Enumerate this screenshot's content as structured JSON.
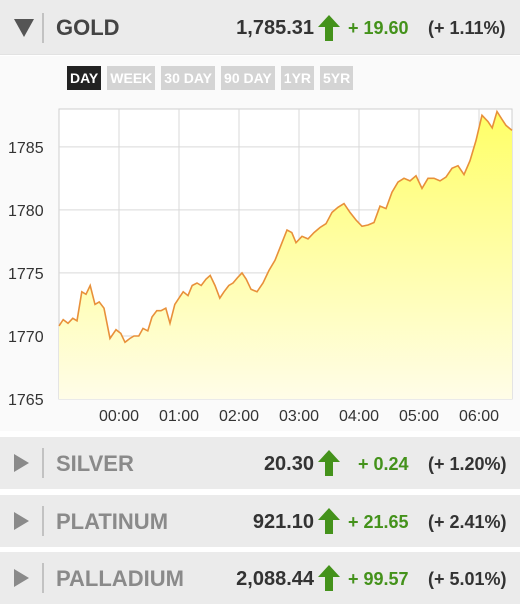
{
  "gold": {
    "name": "GOLD",
    "price": "1,785.31",
    "change": "+ 19.60",
    "percent": "(+ 1.11%)",
    "icons": {
      "collapse": "triangle-down-icon",
      "trend": "arrow-up-icon"
    }
  },
  "tabs": [
    {
      "label": "DAY",
      "active": true
    },
    {
      "label": "WEEK",
      "active": false
    },
    {
      "label": "30 DAY",
      "active": false
    },
    {
      "label": "90 DAY",
      "active": false
    },
    {
      "label": "1YR",
      "active": false
    },
    {
      "label": "5YR",
      "active": false
    }
  ],
  "metals": [
    {
      "name": "SILVER",
      "price": "20.30",
      "change": "+ 0.24",
      "percent": "(+ 1.20%)"
    },
    {
      "name": "PLATINUM",
      "price": "921.10",
      "change": "+ 21.65",
      "percent": "(+ 2.41%)"
    },
    {
      "name": "PALLADIUM",
      "price": "2,088.44",
      "change": "+ 99.57",
      "percent": "(+ 5.01%)"
    }
  ],
  "colors": {
    "up": "#44921b",
    "line": "#e8903a",
    "fill_top": "#ffff66",
    "fill_bottom": "#fffde8",
    "grid": "#d9d9d9"
  },
  "chart_data": {
    "type": "area",
    "xlim": [
      -1.0,
      6.55
    ],
    "ylim": [
      1765,
      1788
    ],
    "x_ticks": [
      {
        "value": 0,
        "label": "00:00"
      },
      {
        "value": 1,
        "label": "01:00"
      },
      {
        "value": 2,
        "label": "02:00"
      },
      {
        "value": 3,
        "label": "03:00"
      },
      {
        "value": 4,
        "label": "04:00"
      },
      {
        "value": 5,
        "label": "05:00"
      },
      {
        "value": 6,
        "label": "06:00"
      }
    ],
    "y_ticks": [
      {
        "value": 1765,
        "label": "1765"
      },
      {
        "value": 1770,
        "label": "1770"
      },
      {
        "value": 1775,
        "label": "1775"
      },
      {
        "value": 1780,
        "label": "1780"
      },
      {
        "value": 1785,
        "label": "1785"
      }
    ],
    "grid": true,
    "x": [
      -1.0,
      -0.93,
      -0.85,
      -0.77,
      -0.7,
      -0.62,
      -0.55,
      -0.48,
      -0.4,
      -0.33,
      -0.25,
      -0.15,
      -0.05,
      0.03,
      0.1,
      0.18,
      0.25,
      0.33,
      0.4,
      0.48,
      0.55,
      0.63,
      0.7,
      0.78,
      0.85,
      0.93,
      1.0,
      1.07,
      1.15,
      1.22,
      1.3,
      1.37,
      1.45,
      1.52,
      1.6,
      1.68,
      1.75,
      1.83,
      1.9,
      1.97,
      2.05,
      2.12,
      2.2,
      2.3,
      2.4,
      2.5,
      2.6,
      2.7,
      2.8,
      2.88,
      2.95,
      3.05,
      3.15,
      3.25,
      3.35,
      3.45,
      3.55,
      3.65,
      3.75,
      3.85,
      3.95,
      4.05,
      4.15,
      4.25,
      4.35,
      4.45,
      4.55,
      4.65,
      4.75,
      4.85,
      4.95,
      5.05,
      5.15,
      5.25,
      5.35,
      5.45,
      5.55,
      5.65,
      5.75,
      5.85,
      5.95,
      6.05,
      6.15,
      6.22,
      6.3,
      6.38,
      6.45,
      6.55
    ],
    "y": [
      1770.8,
      1771.3,
      1771.0,
      1771.4,
      1771.2,
      1773.5,
      1773.3,
      1774.0,
      1772.5,
      1772.7,
      1772.2,
      1769.8,
      1770.5,
      1770.2,
      1769.5,
      1769.8,
      1770.0,
      1770.0,
      1770.6,
      1770.4,
      1771.5,
      1772.0,
      1772.0,
      1772.2,
      1771.0,
      1772.5,
      1773.0,
      1773.5,
      1773.2,
      1774.0,
      1774.2,
      1774.0,
      1774.5,
      1774.8,
      1774.0,
      1773.0,
      1773.5,
      1774.0,
      1774.2,
      1774.6,
      1775.0,
      1774.5,
      1773.7,
      1773.5,
      1774.2,
      1775.2,
      1776.0,
      1777.2,
      1778.4,
      1778.2,
      1777.4,
      1777.9,
      1777.7,
      1778.2,
      1778.6,
      1778.9,
      1779.8,
      1780.2,
      1780.5,
      1779.8,
      1779.2,
      1778.7,
      1778.8,
      1779.0,
      1780.3,
      1780.1,
      1781.4,
      1782.2,
      1782.5,
      1782.3,
      1782.7,
      1781.7,
      1782.5,
      1782.5,
      1782.3,
      1782.6,
      1783.3,
      1783.5,
      1782.8,
      1783.9,
      1785.5,
      1787.5,
      1787.0,
      1786.5,
      1787.8,
      1787.2,
      1786.7,
      1786.3
    ]
  }
}
